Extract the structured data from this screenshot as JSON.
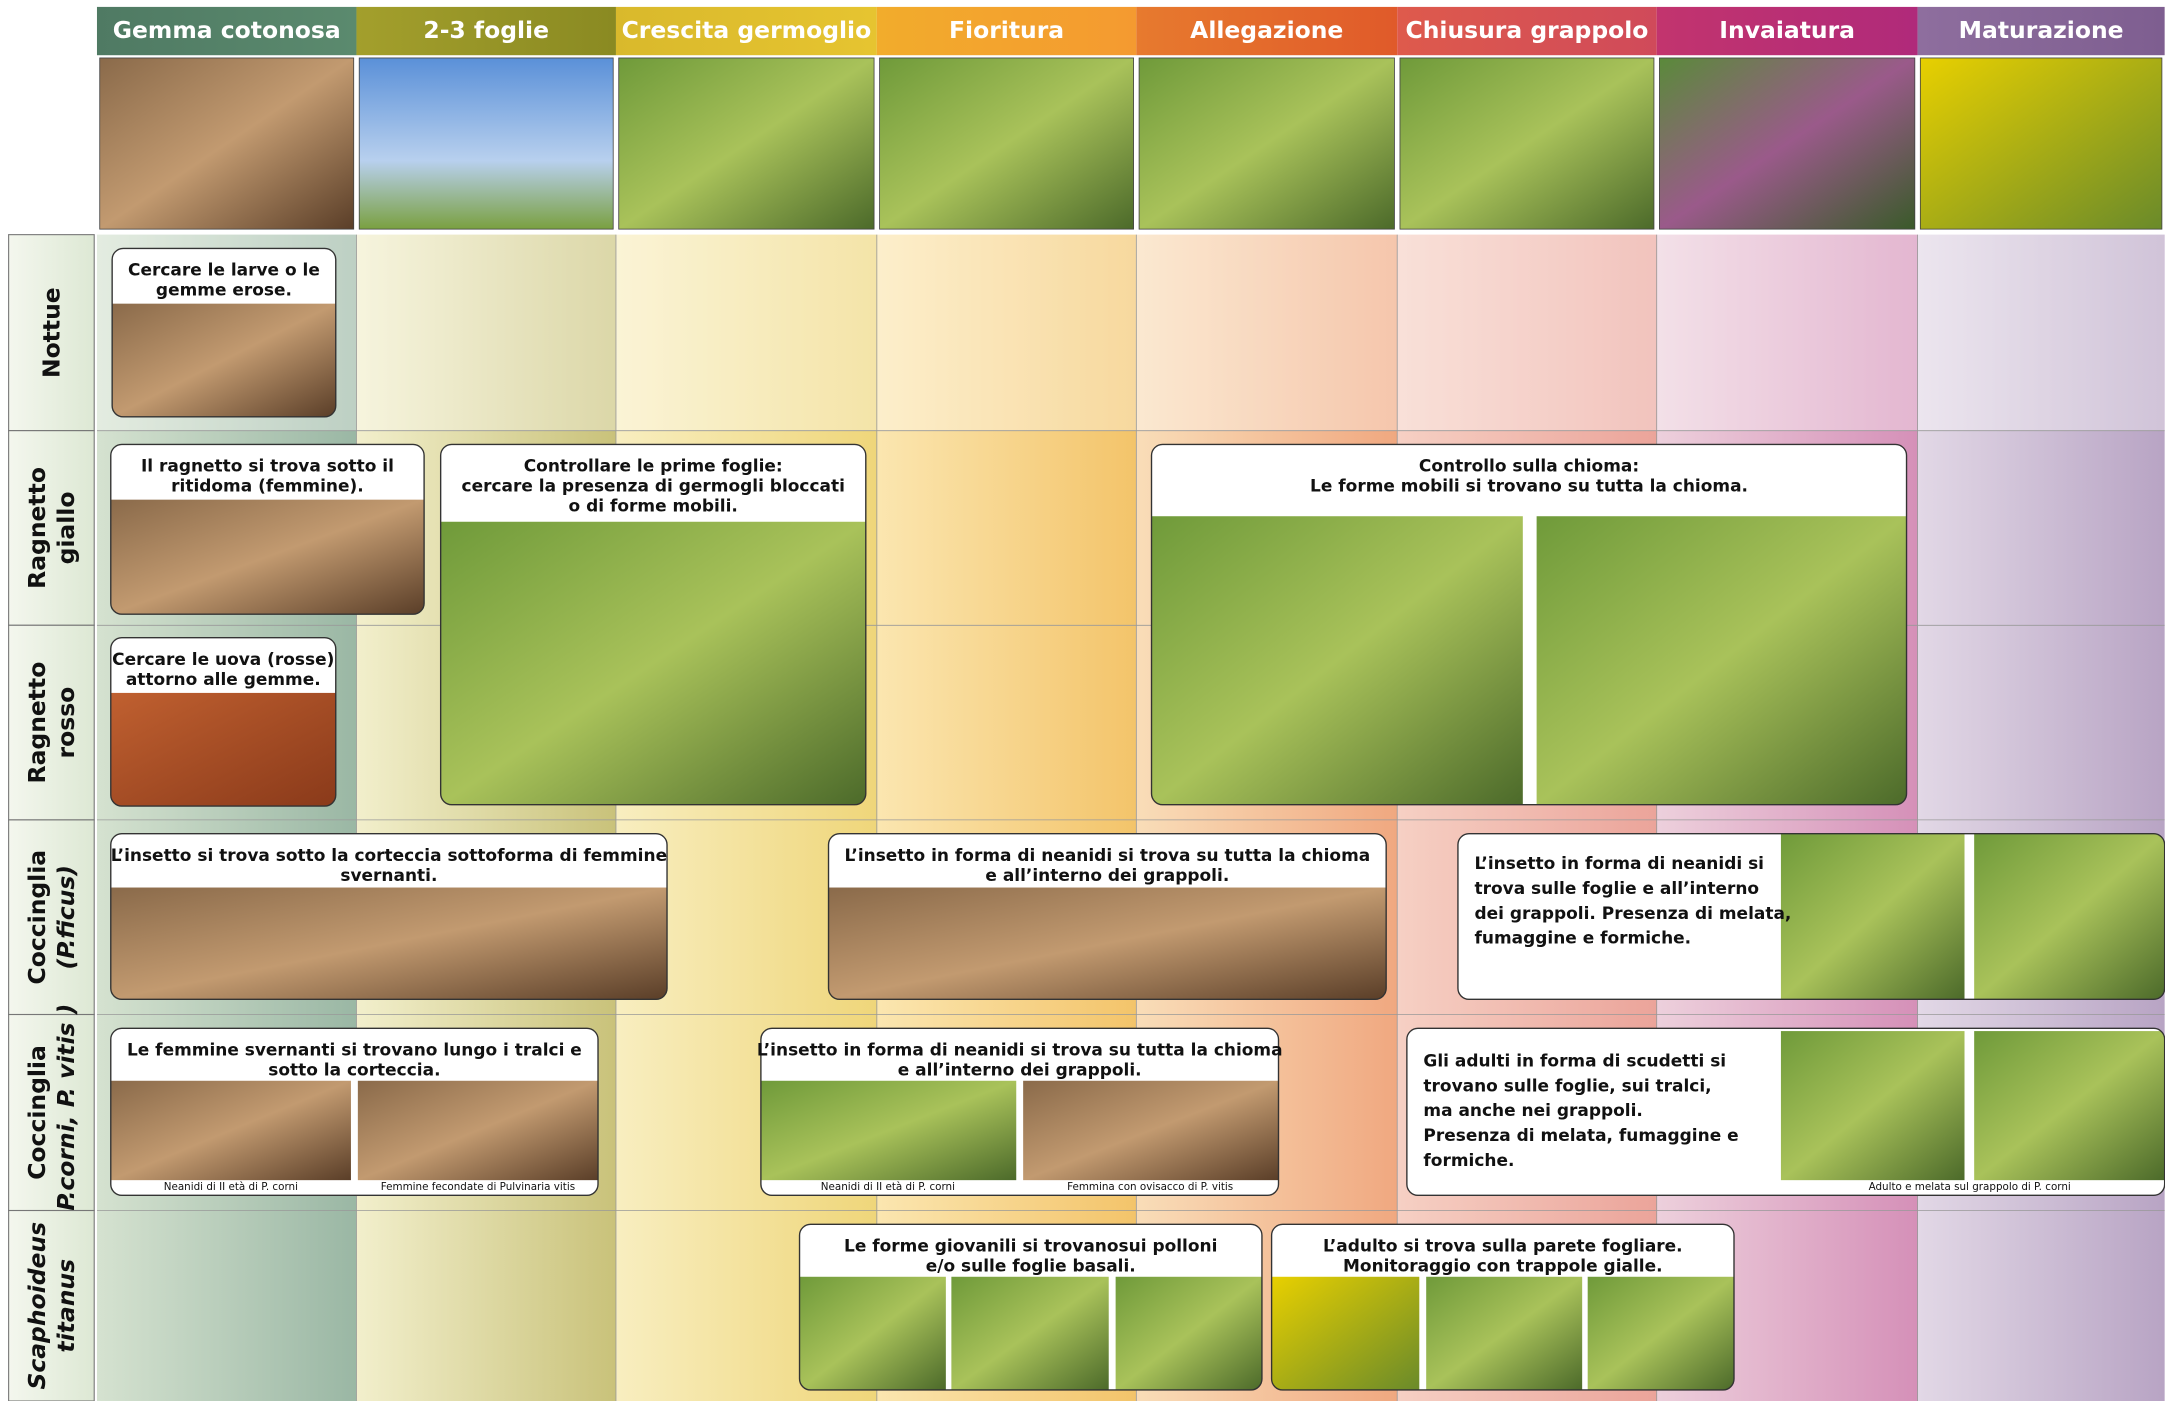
{
  "stages": [
    "Gemma cotonosa",
    "2-3 foglie",
    "Crescita germoglio",
    "Fioritura",
    "Allegazione",
    "Chiusura grappolo",
    "Invaiatura",
    "Maturazione"
  ],
  "rows": [
    {
      "label": [
        "Nottue"
      ]
    },
    {
      "label": [
        "Ragnetto",
        "giallo"
      ]
    },
    {
      "label": [
        "Ragnetto",
        "rosso"
      ]
    },
    {
      "label": [
        "Coccinglia",
        "(P.ficus)"
      ]
    },
    {
      "label": [
        "Coccinglia",
        "(P.corni, P. vitis )"
      ]
    },
    {
      "label": [
        "Scaphoideus",
        "titanus"
      ]
    }
  ],
  "cards": [
    {
      "text": [
        "Cercare le larve o le",
        "gemme erose."
      ]
    },
    {
      "text": [
        "Il ragnetto si trova sotto il",
        "ritidoma (femmine)."
      ]
    },
    {
      "text": [
        "Controllare le prime foglie:",
        "cercare la presenza di germogli bloccati",
        "o di forme mobili."
      ]
    },
    {
      "text": [
        "Controllo sulla chioma:",
        "Le forme mobili si trovano su tutta la chioma."
      ]
    },
    {
      "text": [
        "Cercare le uova (rosse)",
        "attorno alle gemme."
      ]
    },
    {
      "text": [
        "L’insetto si trova sotto la corteccia sottoforma di femmine",
        "svernanti."
      ]
    },
    {
      "text": [
        "L’insetto in forma di neanidi si trova su tutta la chioma",
        "e all’interno dei grappoli."
      ]
    },
    {
      "text": [
        "L’insetto in forma di neanidi si",
        "trova sulle foglie e all’interno",
        "dei grappoli. Presenza di melata,",
        "fumaggine e formiche."
      ]
    },
    {
      "text": [
        "Le femmine svernanti si trovano lungo i tralci e",
        "sotto la corteccia."
      ],
      "captions": [
        "Neanidi di II età di P. corni",
        "Femmine fecondate di Pulvinaria vitis"
      ]
    },
    {
      "text": [
        "L’insetto in forma di neanidi si trova su tutta la chioma",
        "e all’interno dei grappoli."
      ],
      "captions": [
        "Neanidi di II età di P. corni",
        "Femmina con ovisacco di P. vitis"
      ]
    },
    {
      "text": [
        "Gli adulti in forma di scudetti si",
        "trovano sulle foglie, sui tralci,",
        "ma anche nei grappoli.",
        "Presenza di melata, fumaggine e",
        "formiche."
      ],
      "captions": [
        "Adulto e melata sul grappolo di P. corni"
      ]
    },
    {
      "text": [
        "Le forme giovanili si trovanosui polloni",
        "e/o sulle foglie basali."
      ]
    },
    {
      "text": [
        "L’adulto si trova sulla parete fogliare.",
        "Monitoraggio con trappole gialle."
      ]
    }
  ]
}
